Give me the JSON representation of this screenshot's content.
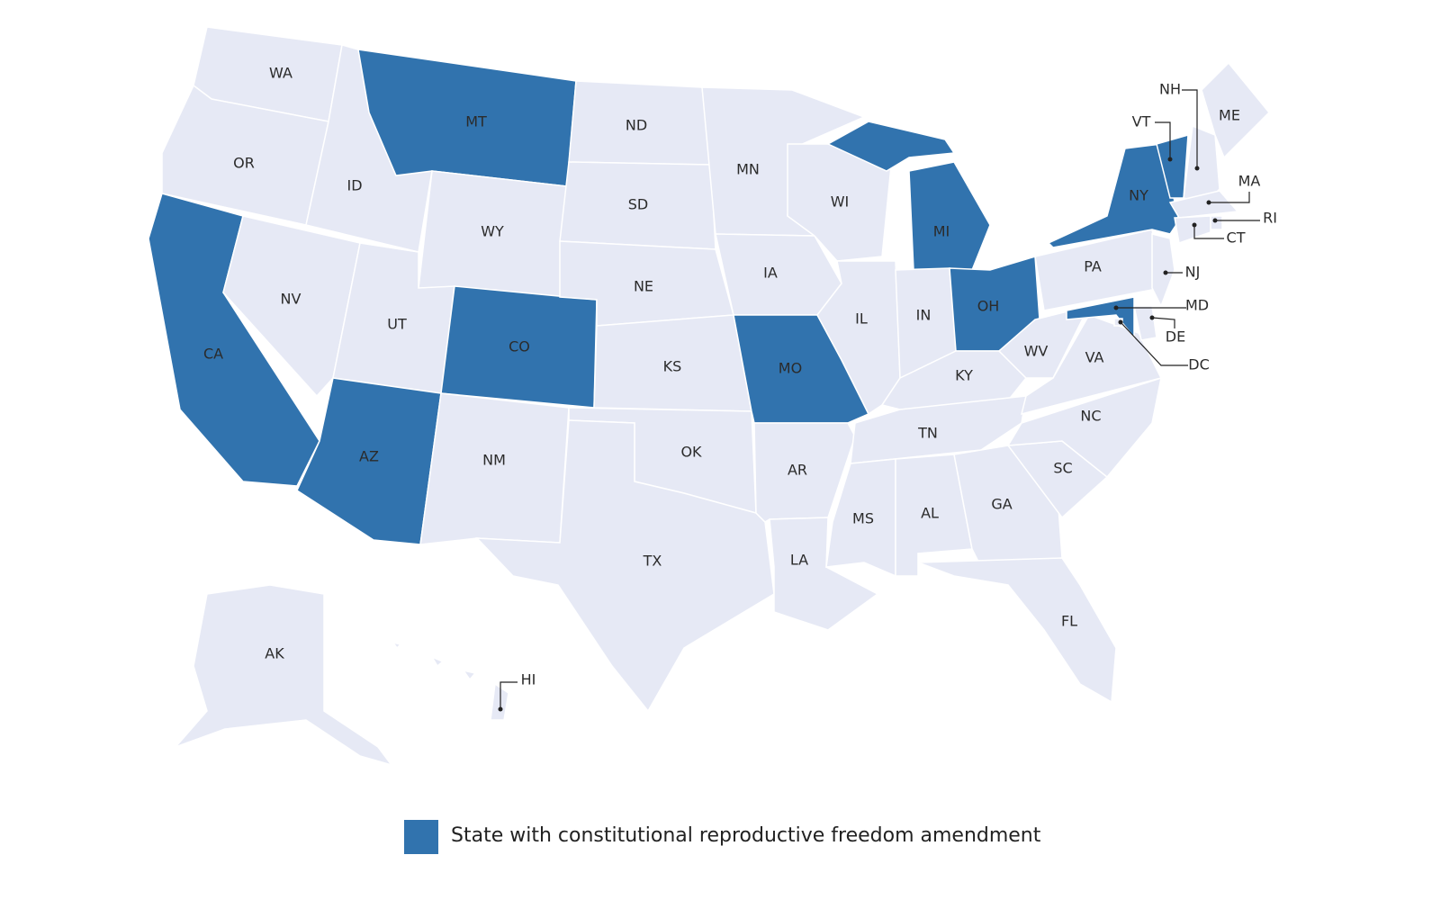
{
  "map": {
    "base_color": "#e6e9f5",
    "highlight_color": "#3173ae",
    "states": [
      {
        "label": "WA",
        "highlighted": false
      },
      {
        "label": "OR",
        "highlighted": false
      },
      {
        "label": "CA",
        "highlighted": true
      },
      {
        "label": "NV",
        "highlighted": false
      },
      {
        "label": "ID",
        "highlighted": false
      },
      {
        "label": "MT",
        "highlighted": true
      },
      {
        "label": "WY",
        "highlighted": false
      },
      {
        "label": "UT",
        "highlighted": false
      },
      {
        "label": "AZ",
        "highlighted": true
      },
      {
        "label": "CO",
        "highlighted": true
      },
      {
        "label": "NM",
        "highlighted": false
      },
      {
        "label": "ND",
        "highlighted": false
      },
      {
        "label": "SD",
        "highlighted": false
      },
      {
        "label": "NE",
        "highlighted": false
      },
      {
        "label": "KS",
        "highlighted": false
      },
      {
        "label": "OK",
        "highlighted": false
      },
      {
        "label": "TX",
        "highlighted": false
      },
      {
        "label": "MN",
        "highlighted": false
      },
      {
        "label": "IA",
        "highlighted": false
      },
      {
        "label": "MO",
        "highlighted": true
      },
      {
        "label": "AR",
        "highlighted": false
      },
      {
        "label": "LA",
        "highlighted": false
      },
      {
        "label": "WI",
        "highlighted": false
      },
      {
        "label": "IL",
        "highlighted": false
      },
      {
        "label": "MI",
        "highlighted": true
      },
      {
        "label": "IN",
        "highlighted": false
      },
      {
        "label": "OH",
        "highlighted": true
      },
      {
        "label": "KY",
        "highlighted": false
      },
      {
        "label": "TN",
        "highlighted": false
      },
      {
        "label": "MS",
        "highlighted": false
      },
      {
        "label": "AL",
        "highlighted": false
      },
      {
        "label": "GA",
        "highlighted": false
      },
      {
        "label": "FL",
        "highlighted": false
      },
      {
        "label": "SC",
        "highlighted": false
      },
      {
        "label": "NC",
        "highlighted": false
      },
      {
        "label": "VA",
        "highlighted": false
      },
      {
        "label": "WV",
        "highlighted": false
      },
      {
        "label": "PA",
        "highlighted": false
      },
      {
        "label": "NY",
        "highlighted": true
      },
      {
        "label": "VT",
        "highlighted": true
      },
      {
        "label": "NH",
        "highlighted": false
      },
      {
        "label": "ME",
        "highlighted": false
      },
      {
        "label": "MA",
        "highlighted": false
      },
      {
        "label": "RI",
        "highlighted": false
      },
      {
        "label": "CT",
        "highlighted": false
      },
      {
        "label": "NJ",
        "highlighted": false
      },
      {
        "label": "DE",
        "highlighted": false
      },
      {
        "label": "MD",
        "highlighted": true
      },
      {
        "label": "DC",
        "highlighted": false
      },
      {
        "label": "AK",
        "highlighted": false
      },
      {
        "label": "HI",
        "highlighted": false
      }
    ]
  },
  "legend": {
    "label": "State with constitutional reproductive freedom amendment",
    "color": "#3173ae"
  }
}
